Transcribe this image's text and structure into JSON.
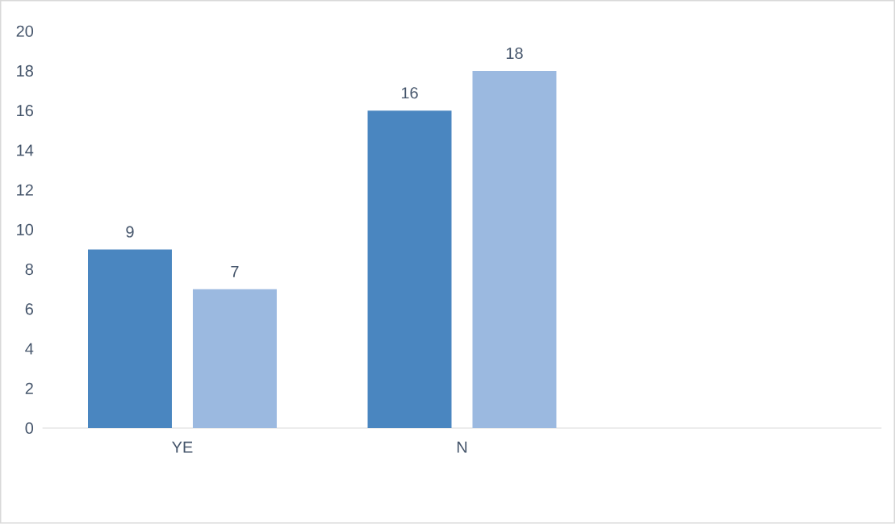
{
  "chart_data": {
    "type": "bar",
    "categories": [
      "YE",
      "N",
      null
    ],
    "series": [
      {
        "color": "#4a86c0",
        "values": [
          9,
          16,
          null
        ]
      },
      {
        "color": "#9bb9e0",
        "values": [
          7,
          18,
          null
        ]
      }
    ],
    "ylim": [
      0,
      20
    ],
    "yticks": [
      0,
      2,
      4,
      6,
      8,
      10,
      12,
      14,
      16,
      18,
      20
    ],
    "data_labels": true
  }
}
